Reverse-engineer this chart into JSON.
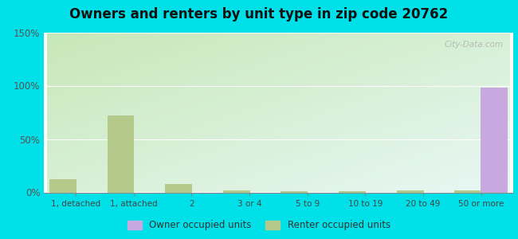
{
  "title": "Owners and renters by unit type in zip code 20762",
  "categories": [
    "1, detached",
    "1, attached",
    "2",
    "3 or 4",
    "5 to 9",
    "10 to 19",
    "20 to 49",
    "50 or more"
  ],
  "owner_values": [
    0,
    0,
    0,
    0,
    0,
    0,
    0,
    98
  ],
  "renter_values": [
    12,
    72,
    8,
    2,
    1,
    1,
    2,
    2
  ],
  "owner_color": "#c9a8e0",
  "renter_color": "#b5c98a",
  "ylim": [
    0,
    150
  ],
  "yticks": [
    0,
    50,
    100,
    150
  ],
  "ytick_labels": [
    "0%",
    "50%",
    "100%",
    "150%"
  ],
  "outer_background": "#00e0e8",
  "legend_owner_label": "Owner occupied units",
  "legend_renter_label": "Renter occupied units",
  "watermark": "City-Data.com",
  "bar_width": 0.55,
  "title_fontsize": 12
}
